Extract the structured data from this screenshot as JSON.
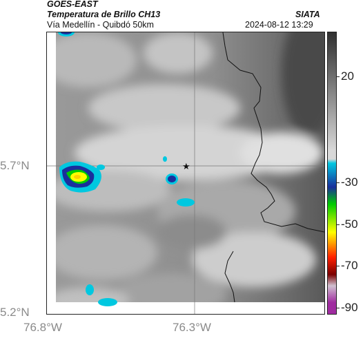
{
  "header": {
    "satellite": "GOES-EAST",
    "product": "Temperatura de Brillo CH13",
    "region": "Vía Medellín - Quibdó 50km",
    "org": "SIATA",
    "timestamp": "2024-08-12 13:29"
  },
  "axes": {
    "lat_ticks": [
      "5.7°N",
      "5.2°N"
    ],
    "lon_ticks": [
      "76.8°W",
      "76.3°W"
    ]
  },
  "colorbar": {
    "ticks": [
      "20",
      "-30",
      "-50",
      "-70",
      "-90"
    ],
    "palette": [
      "#303030",
      "#d8d8d8",
      "#00c8e0",
      "#1a2f9c",
      "#00cc00",
      "#ffff00",
      "#ff2000",
      "#7a0000",
      "#d0c0d0",
      "#a02ca0"
    ]
  },
  "legend": {
    "marker": "star-icon"
  }
}
